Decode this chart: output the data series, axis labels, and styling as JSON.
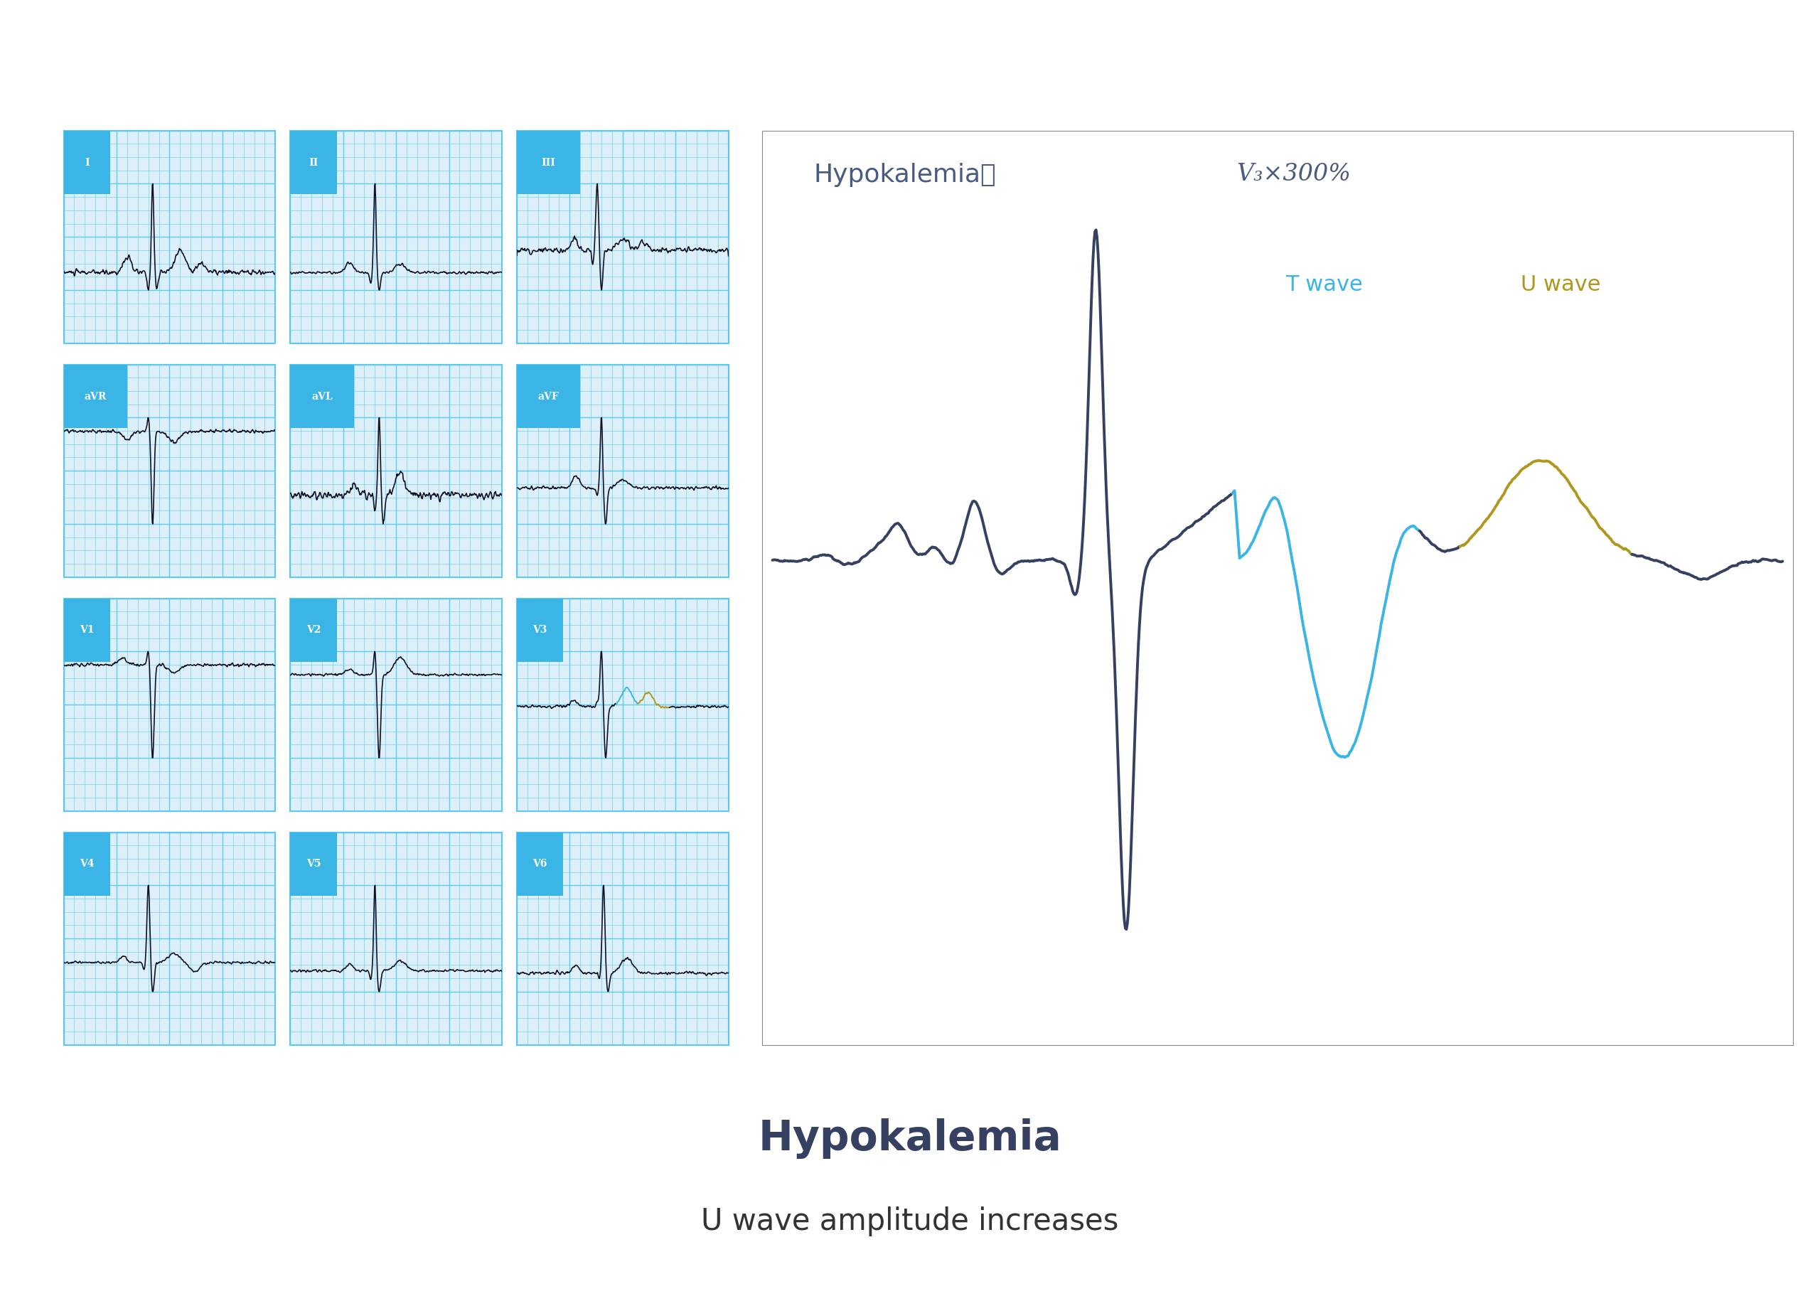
{
  "bg_color": "#ffffff",
  "grid_color": "#5bc8f5",
  "grid_bg_color": "#ddf0fa",
  "ecg_color": "#111122",
  "label_bg_color": "#3ab5e6",
  "label_text_color": "#ffffff",
  "labels": [
    "I",
    "II",
    "III",
    "aVR",
    "aVL",
    "aVF",
    "V1",
    "V2",
    "V3",
    "V4",
    "V5",
    "V6"
  ],
  "title_main": "Hypokalemia",
  "title_sub": "U wave amplitude increases",
  "panel_title": "Hypokalemia：",
  "panel_subtitle": "V₃×300%",
  "t_wave_label": "T wave",
  "u_wave_label": "U wave",
  "t_wave_color": "#3ab5e6",
  "u_wave_color": "#b09820",
  "dark_ecg_color": "#364060",
  "title_color": "#364060",
  "title_fontsize": 42,
  "subtitle_fontsize": 30,
  "panel_title_color": "#4a5a80"
}
